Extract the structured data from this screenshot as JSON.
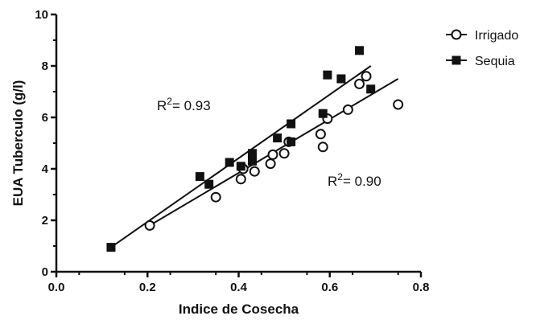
{
  "chart_data": {
    "type": "scatter",
    "xlabel": "Indice de Cosecha",
    "ylabel": "EUA Tuberculo (g/l)",
    "xlim": [
      0.0,
      0.8
    ],
    "ylim": [
      0,
      10
    ],
    "x_ticks": [
      "0.0",
      "0.2",
      "0.4",
      "0.6",
      "0.8"
    ],
    "y_ticks": [
      "0",
      "2",
      "4",
      "6",
      "8",
      "10"
    ],
    "grid": false,
    "legend_position": "top-right",
    "series": [
      {
        "name": "Irrigado",
        "marker": "open-circle",
        "color": "#111111",
        "points": [
          [
            0.205,
            1.8
          ],
          [
            0.35,
            2.9
          ],
          [
            0.405,
            3.6
          ],
          [
            0.41,
            4.0
          ],
          [
            0.435,
            3.9
          ],
          [
            0.47,
            4.2
          ],
          [
            0.475,
            4.55
          ],
          [
            0.5,
            4.6
          ],
          [
            0.51,
            5.05
          ],
          [
            0.58,
            5.35
          ],
          [
            0.585,
            4.85
          ],
          [
            0.595,
            5.95
          ],
          [
            0.64,
            6.3
          ],
          [
            0.665,
            7.3
          ],
          [
            0.68,
            7.6
          ],
          [
            0.75,
            6.5
          ]
        ],
        "fit": {
          "x": [
            0.2,
            0.75
          ],
          "y": [
            1.75,
            7.5
          ]
        },
        "r2_label": "R²= 0.90"
      },
      {
        "name": "Sequia",
        "marker": "filled-square",
        "color": "#111111",
        "points": [
          [
            0.12,
            0.95
          ],
          [
            0.315,
            3.7
          ],
          [
            0.335,
            3.4
          ],
          [
            0.38,
            4.25
          ],
          [
            0.405,
            4.1
          ],
          [
            0.43,
            4.3
          ],
          [
            0.43,
            4.6
          ],
          [
            0.485,
            5.2
          ],
          [
            0.515,
            5.05
          ],
          [
            0.515,
            5.75
          ],
          [
            0.585,
            6.15
          ],
          [
            0.595,
            7.65
          ],
          [
            0.625,
            7.5
          ],
          [
            0.665,
            8.6
          ],
          [
            0.69,
            7.1
          ]
        ],
        "fit": {
          "x": [
            0.12,
            0.69
          ],
          "y": [
            0.95,
            8.0
          ]
        },
        "r2_label": "R²= 0.93"
      }
    ],
    "annotations": [
      {
        "series": 1,
        "text_base": "R",
        "text_sup": "2",
        "text_value": "= 0.93"
      },
      {
        "series": 0,
        "text_base": "R",
        "text_sup": "2",
        "text_value": "= 0.90"
      }
    ]
  }
}
